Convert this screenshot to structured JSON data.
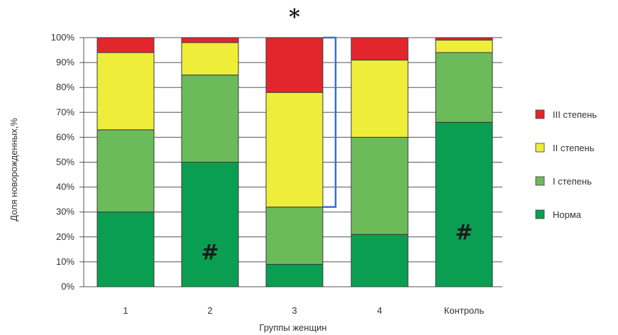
{
  "chart_data": {
    "type": "bar",
    "stacked": true,
    "percent": true,
    "categories": [
      "1",
      "2",
      "3",
      "4",
      "Контроль"
    ],
    "series": [
      {
        "name": "Норма",
        "color": "#0a9e52",
        "values": [
          30,
          50,
          9,
          21,
          66
        ]
      },
      {
        "name": "I степень",
        "color": "#6cbb5a",
        "values": [
          33,
          35,
          23,
          39,
          28
        ]
      },
      {
        "name": "II степень",
        "color": "#eeee3a",
        "values": [
          31,
          13,
          46,
          31,
          5
        ]
      },
      {
        "name": "III степень",
        "color": "#e3262b",
        "values": [
          6,
          2,
          22,
          9,
          1
        ]
      }
    ],
    "xlabel": "Группы женщин",
    "ylabel": "Доля новорожденных,%",
    "ylim": [
      0,
      100
    ],
    "yticks": [
      "0%",
      "10%",
      "20%",
      "30%",
      "40%",
      "50%",
      "60%",
      "70%",
      "80%",
      "90%",
      "100%"
    ],
    "grid": true,
    "legend_position": "right",
    "legend_order": [
      "III степень",
      "II степень",
      "I степень",
      "Норма"
    ],
    "annotations": [
      {
        "text": "*",
        "target": "3",
        "kind": "bracket"
      },
      {
        "text": "#",
        "target": "2",
        "y": 11
      },
      {
        "text": "#",
        "target": "Контроль",
        "y": 19
      }
    ]
  }
}
